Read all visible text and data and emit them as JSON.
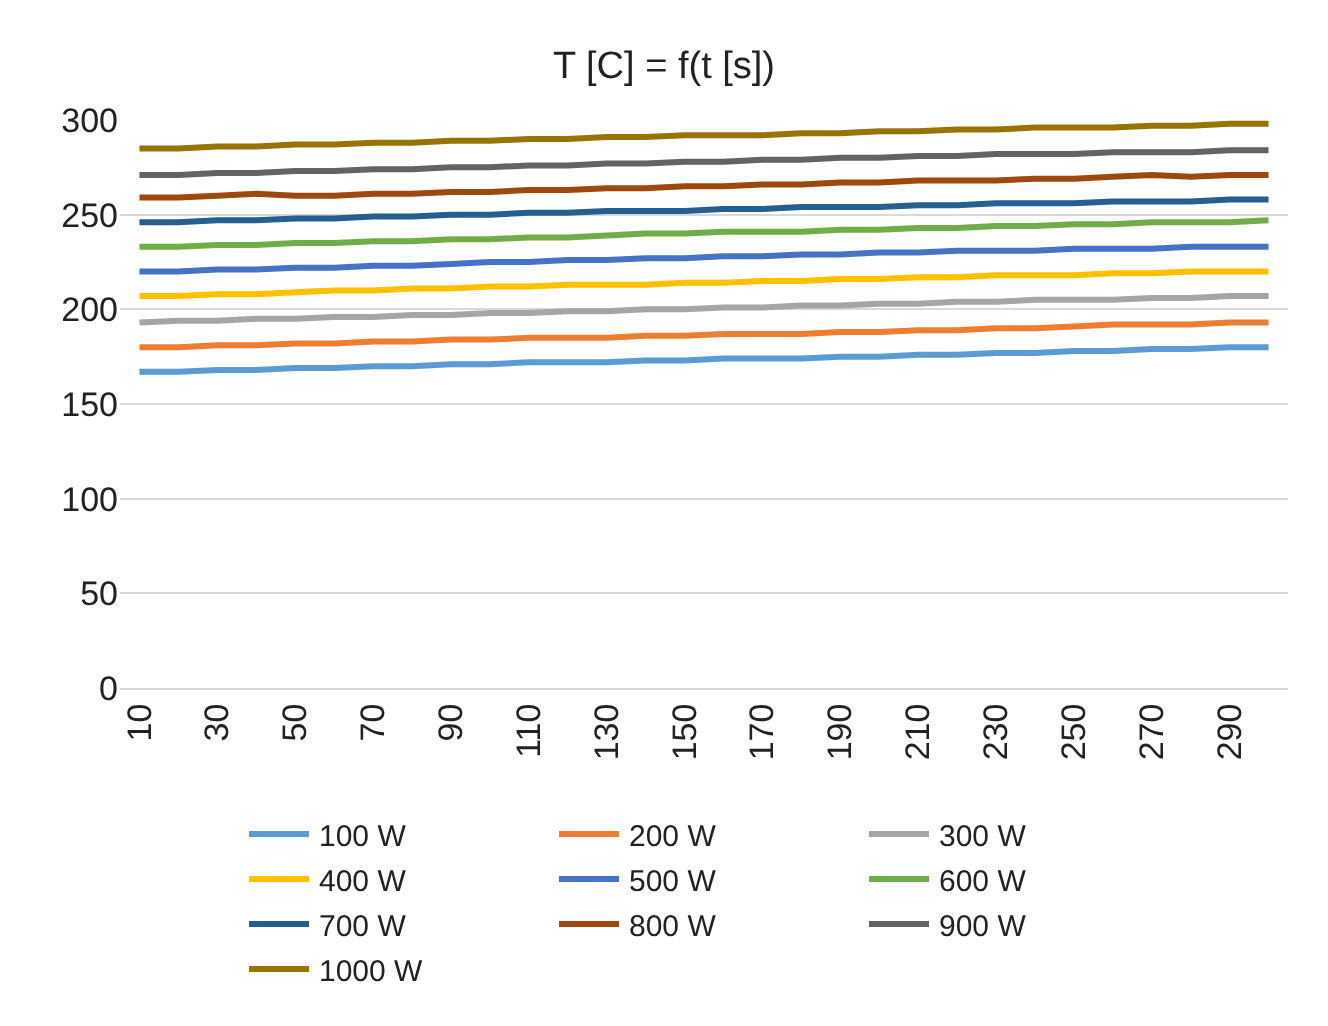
{
  "chart_data": {
    "type": "line",
    "title": "T [C] = f(t [s])",
    "categories": [
      "10",
      null,
      "30",
      null,
      "50",
      null,
      "70",
      null,
      "90",
      null,
      "110",
      null,
      "130",
      null,
      "150",
      null,
      "170",
      null,
      "190",
      null,
      "210",
      null,
      "230",
      null,
      "250",
      null,
      "270",
      null,
      "290",
      null
    ],
    "series": [
      {
        "name": "100 W",
        "color": "#5b9bd5",
        "values": [
          167,
          167,
          168,
          168,
          169,
          169,
          170,
          170,
          171,
          171,
          172,
          172,
          172,
          173,
          173,
          174,
          174,
          174,
          175,
          175,
          176,
          176,
          177,
          177,
          178,
          178,
          179,
          179,
          180,
          180
        ]
      },
      {
        "name": "200 W",
        "color": "#ed7d31",
        "values": [
          180,
          180,
          181,
          181,
          182,
          182,
          183,
          183,
          184,
          184,
          185,
          185,
          185,
          186,
          186,
          187,
          187,
          187,
          188,
          188,
          189,
          189,
          190,
          190,
          191,
          192,
          192,
          192,
          193,
          193
        ]
      },
      {
        "name": "300 W",
        "color": "#a5a5a5",
        "values": [
          193,
          194,
          194,
          195,
          195,
          196,
          196,
          197,
          197,
          198,
          198,
          199,
          199,
          200,
          200,
          201,
          201,
          202,
          202,
          203,
          203,
          204,
          204,
          205,
          205,
          205,
          206,
          206,
          207,
          207
        ]
      },
      {
        "name": "400 W",
        "color": "#ffc000",
        "values": [
          207,
          207,
          208,
          208,
          209,
          210,
          210,
          211,
          211,
          212,
          212,
          213,
          213,
          213,
          214,
          214,
          215,
          215,
          216,
          216,
          217,
          217,
          218,
          218,
          218,
          219,
          219,
          220,
          220,
          220
        ]
      },
      {
        "name": "500 W",
        "color": "#4472c4",
        "values": [
          220,
          220,
          221,
          221,
          222,
          222,
          223,
          223,
          224,
          225,
          225,
          226,
          226,
          227,
          227,
          228,
          228,
          229,
          229,
          230,
          230,
          231,
          231,
          231,
          232,
          232,
          232,
          233,
          233,
          233
        ]
      },
      {
        "name": "600 W",
        "color": "#70ad47",
        "values": [
          233,
          233,
          234,
          234,
          235,
          235,
          236,
          236,
          237,
          237,
          238,
          238,
          239,
          240,
          240,
          241,
          241,
          241,
          242,
          242,
          243,
          243,
          244,
          244,
          245,
          245,
          246,
          246,
          246,
          247
        ]
      },
      {
        "name": "700 W",
        "color": "#255e91",
        "values": [
          246,
          246,
          247,
          247,
          248,
          248,
          249,
          249,
          250,
          250,
          251,
          251,
          252,
          252,
          252,
          253,
          253,
          254,
          254,
          254,
          255,
          255,
          256,
          256,
          256,
          257,
          257,
          257,
          258,
          258
        ]
      },
      {
        "name": "800 W",
        "color": "#9e480e",
        "values": [
          259,
          259,
          260,
          261,
          260,
          260,
          261,
          261,
          262,
          262,
          263,
          263,
          264,
          264,
          265,
          265,
          266,
          266,
          267,
          267,
          268,
          268,
          268,
          269,
          269,
          270,
          271,
          270,
          271,
          271
        ]
      },
      {
        "name": "900 W",
        "color": "#636363",
        "values": [
          271,
          271,
          272,
          272,
          273,
          273,
          274,
          274,
          275,
          275,
          276,
          276,
          277,
          277,
          278,
          278,
          279,
          279,
          280,
          280,
          281,
          281,
          282,
          282,
          282,
          283,
          283,
          283,
          284,
          284
        ]
      },
      {
        "name": "1000 W",
        "color": "#997300",
        "values": [
          285,
          285,
          286,
          286,
          287,
          287,
          288,
          288,
          289,
          289,
          290,
          290,
          291,
          291,
          292,
          292,
          292,
          293,
          293,
          294,
          294,
          295,
          295,
          296,
          296,
          296,
          297,
          297,
          298,
          298
        ]
      }
    ],
    "ylim": [
      0,
      300
    ],
    "yticks": [
      0,
      50,
      100,
      150,
      200,
      250,
      300
    ],
    "grid": "y",
    "legend": "bottom",
    "marker": "none",
    "line_style": "solid"
  }
}
